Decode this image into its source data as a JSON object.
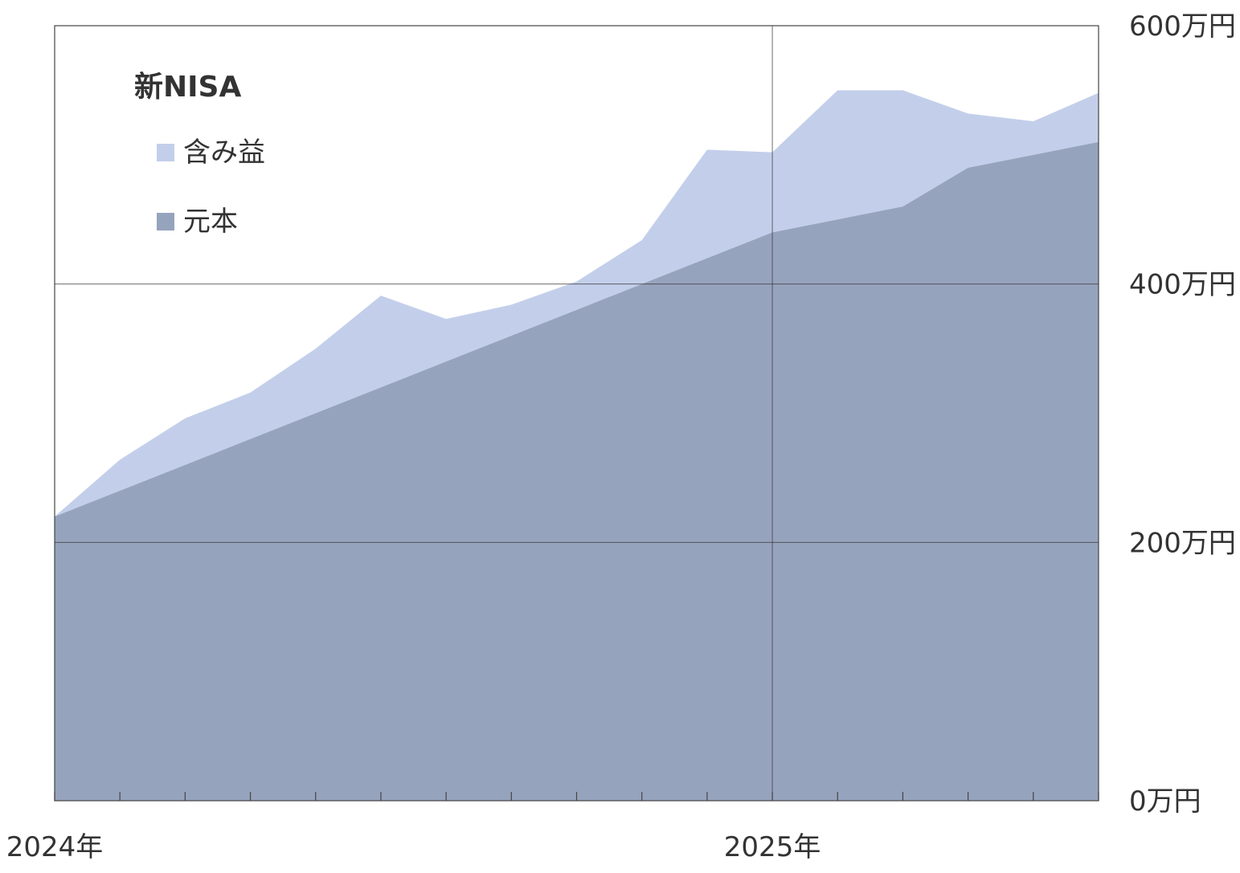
{
  "chart_data": {
    "type": "area",
    "stacked": true,
    "unit": "万円",
    "x": [
      0,
      1,
      2,
      3,
      4,
      5,
      6,
      7,
      8,
      9,
      10,
      11,
      12,
      13,
      14,
      15,
      16
    ],
    "x_tick_labels": [
      {
        "index": 0,
        "label": "2024年"
      },
      {
        "index": 11,
        "label": "2025年"
      }
    ],
    "y_tick_labels": [
      "0万円",
      "200万円",
      "400万円",
      "600万円"
    ],
    "y_ticks": [
      0,
      200,
      400,
      600
    ],
    "ylim": [
      0,
      600
    ],
    "grid": true,
    "legend": {
      "title": "新NISA",
      "placement": "top-left",
      "items": [
        {
          "name": "含み益",
          "color": "#c3cfea"
        },
        {
          "name": "元本",
          "color": "#96a3bd"
        }
      ]
    },
    "series": [
      {
        "name": "元本",
        "color": "#96a3bd",
        "values": [
          220,
          240,
          260,
          280,
          300,
          320,
          340,
          360,
          380,
          400,
          420,
          440,
          450,
          460,
          490,
          500,
          510
        ]
      },
      {
        "name": "含み益",
        "color": "#c3cfea",
        "values": [
          0,
          24,
          36,
          36,
          50,
          71,
          33,
          24,
          22,
          34,
          84,
          62,
          100,
          90,
          42,
          26,
          38
        ]
      }
    ]
  }
}
